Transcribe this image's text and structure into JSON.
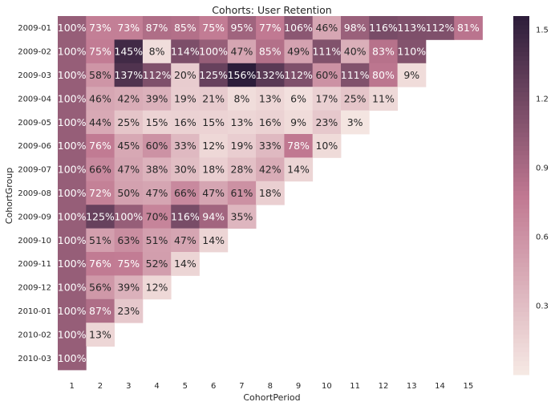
{
  "chart_data": {
    "type": "heatmap",
    "title": "Cohorts: User Retention",
    "xlabel": "CohortPeriod",
    "ylabel": "CohortGroup",
    "x_categories": [
      "1",
      "2",
      "3",
      "4",
      "5",
      "6",
      "7",
      "8",
      "9",
      "10",
      "11",
      "12",
      "13",
      "14",
      "15"
    ],
    "y_categories": [
      "2009-01",
      "2009-02",
      "2009-03",
      "2009-04",
      "2009-05",
      "2009-06",
      "2009-07",
      "2009-08",
      "2009-09",
      "2009-10",
      "2009-11",
      "2009-12",
      "2010-01",
      "2010-02",
      "2010-03"
    ],
    "values": [
      [
        100,
        73,
        73,
        87,
        85,
        75,
        95,
        77,
        106,
        46,
        98,
        116,
        113,
        112,
        81
      ],
      [
        100,
        75,
        145,
        8,
        114,
        100,
        47,
        85,
        49,
        111,
        40,
        83,
        110
      ],
      [
        100,
        58,
        137,
        112,
        20,
        125,
        156,
        132,
        112,
        60,
        111,
        80,
        9
      ],
      [
        100,
        46,
        42,
        39,
        19,
        21,
        8,
        13,
        6,
        17,
        25,
        11
      ],
      [
        100,
        44,
        25,
        15,
        16,
        15,
        13,
        16,
        9,
        23,
        3
      ],
      [
        100,
        76,
        45,
        60,
        33,
        12,
        19,
        33,
        78,
        10
      ],
      [
        100,
        66,
        47,
        38,
        30,
        18,
        28,
        42,
        14
      ],
      [
        100,
        72,
        50,
        47,
        66,
        47,
        61,
        18
      ],
      [
        100,
        125,
        100,
        70,
        116,
        94,
        35
      ],
      [
        100,
        51,
        63,
        51,
        47,
        14
      ],
      [
        100,
        76,
        75,
        52,
        14
      ],
      [
        100,
        56,
        39,
        12
      ],
      [
        100,
        87,
        23
      ],
      [
        100,
        13
      ],
      [
        100
      ]
    ],
    "value_format": "percent",
    "colorbar": {
      "min": 0,
      "max": 1.56,
      "ticks": [
        "0.3",
        "0.6",
        "0.9",
        "1.2",
        "1.5"
      ],
      "tick_values": [
        0.3,
        0.6,
        0.9,
        1.2,
        1.5
      ],
      "color_low": "#f6e9e4",
      "color_mid": "#c07891",
      "color_high": "#2c1d3a"
    },
    "grid": false
  }
}
